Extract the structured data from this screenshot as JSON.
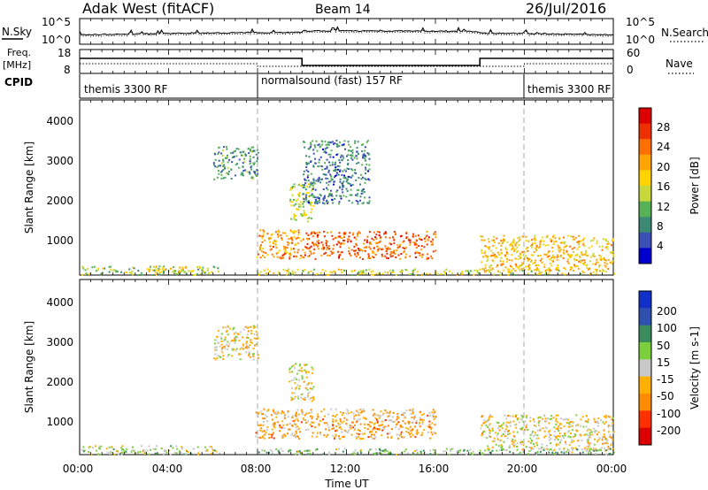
{
  "header": {
    "station": "Adak West (fitACF)",
    "beam": "Beam 14",
    "date": "26/Jul/2016"
  },
  "noise_panel": {
    "left_label": "N.Sky",
    "right_label": "N.Search",
    "left_ticks": [
      "10^5",
      "10^0"
    ],
    "right_ticks": [
      "10^5",
      "10^0"
    ]
  },
  "freq_panel": {
    "left_label_top": "Freq.",
    "left_label_unit": "[MHz]",
    "left_ticks": [
      "18",
      "8"
    ],
    "right_label": "Nave",
    "right_ticks": [
      "60",
      "0"
    ],
    "freq_steps": [
      {
        "from_hour": 0,
        "to_hour": 10,
        "level": "high"
      },
      {
        "from_hour": 10,
        "to_hour": 18,
        "level": "low"
      },
      {
        "from_hour": 18,
        "to_hour": 24,
        "level": "high"
      }
    ]
  },
  "cpid_panel": {
    "label": "CPID",
    "modes": [
      {
        "label": "themis 3300 RF",
        "start_hour": 0,
        "end_hour": 8
      },
      {
        "label": "normalsound (fast) 157 RF",
        "start_hour": 8,
        "end_hour": 20
      },
      {
        "label": "themis 3300 RF",
        "start_hour": 20,
        "end_hour": 24
      }
    ]
  },
  "chart_data": [
    {
      "type": "heatmap",
      "ylabel": "Slant Range [km]",
      "ylim": [
        180,
        4600
      ],
      "y_ticks": [
        "4000",
        "3000",
        "2000",
        "1000"
      ],
      "xlim": [
        0,
        24
      ],
      "colorbar": {
        "label": "Power [dB]",
        "ticks": [
          "28",
          "24",
          "20",
          "16",
          "12",
          "8",
          "4"
        ],
        "colors": [
          "#0000cc",
          "#3b4fb5",
          "#3c8a74",
          "#57b257",
          "#c8d83a",
          "#ffd200",
          "#ffa400",
          "#ff6f00",
          "#ee3000",
          "#dd0000"
        ]
      },
      "scatter_regions": [
        {
          "x": [
            0.0,
            6.3
          ],
          "y": [
            200,
            420
          ],
          "level": 0.4
        },
        {
          "x": [
            3.0,
            4.8
          ],
          "y": [
            250,
            420
          ],
          "level": 0.55
        },
        {
          "x": [
            6.0,
            8.0
          ],
          "y": [
            2600,
            3450
          ],
          "level": 0.25
        },
        {
          "x": [
            7.9,
            10.0
          ],
          "y": [
            600,
            1350
          ],
          "level": 0.7
        },
        {
          "x": [
            10.0,
            16.0
          ],
          "y": [
            600,
            1300
          ],
          "level": 0.8
        },
        {
          "x": [
            9.4,
            10.5
          ],
          "y": [
            1550,
            2500
          ],
          "level": 0.45
        },
        {
          "x": [
            10.0,
            13.0
          ],
          "y": [
            2000,
            3600
          ],
          "level": 0.2
        },
        {
          "x": [
            18.0,
            24.0
          ],
          "y": [
            300,
            1200
          ],
          "level": 0.6
        },
        {
          "x": [
            8.0,
            24.0
          ],
          "y": [
            200,
            350
          ],
          "level": 0.5
        }
      ]
    },
    {
      "type": "heatmap",
      "ylabel": "Slant Range [km]",
      "ylim": [
        180,
        4600
      ],
      "y_ticks": [
        "4000",
        "3000",
        "2000",
        "1000"
      ],
      "xlabel": "Time UT",
      "x_ticks": [
        "00:00",
        "04:00",
        "08:00",
        "12:00",
        "16:00",
        "20:00",
        "00:00"
      ],
      "xlim": [
        0,
        24
      ],
      "colorbar": {
        "label": "Velocity [m s-1]",
        "ticks": [
          "200",
          "100",
          "50",
          "15",
          "-15",
          "-50",
          "-100",
          "-200"
        ],
        "colors": [
          "#dd0000",
          "#ff3000",
          "#ff8c00",
          "#ffb000",
          "#c8c8c8",
          "#7ccf3c",
          "#3b8c5c",
          "#3050b0",
          "#1030c8"
        ]
      },
      "scatter_regions": [
        {
          "x": [
            0.0,
            6.3
          ],
          "y": [
            200,
            420
          ],
          "level": 0.55
        },
        {
          "x": [
            6.0,
            8.0
          ],
          "y": [
            2600,
            3450
          ],
          "level": 0.45
        },
        {
          "x": [
            7.9,
            16.0
          ],
          "y": [
            600,
            1350
          ],
          "level": 0.35
        },
        {
          "x": [
            9.4,
            10.5
          ],
          "y": [
            1550,
            2500
          ],
          "level": 0.45
        },
        {
          "x": [
            18.0,
            24.0
          ],
          "y": [
            300,
            1200
          ],
          "level": 0.45
        },
        {
          "x": [
            8.0,
            24.0
          ],
          "y": [
            200,
            350
          ],
          "level": 0.6
        }
      ]
    }
  ]
}
